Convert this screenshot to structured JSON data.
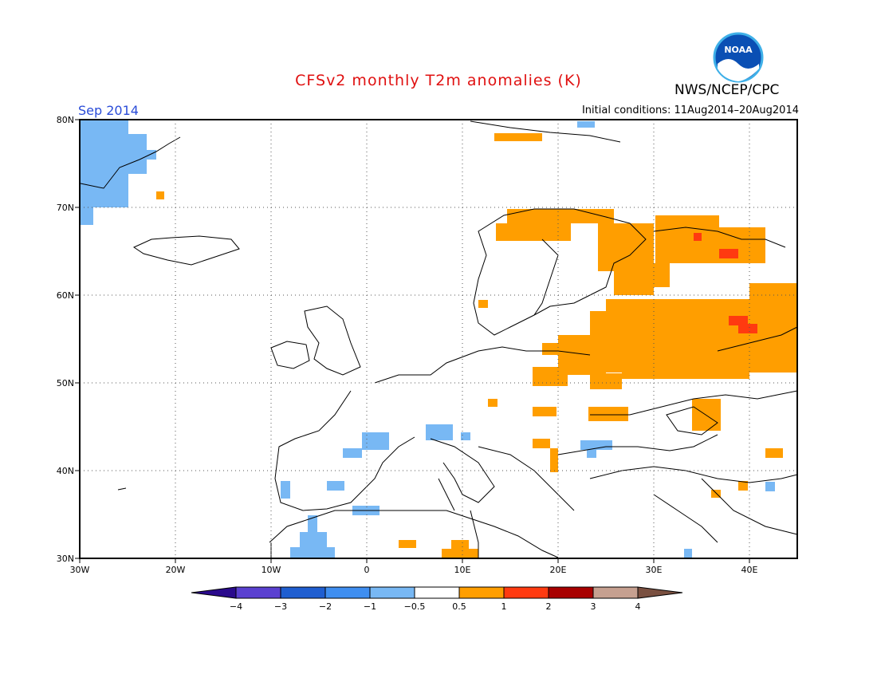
{
  "title": "CFSv2 monthly T2m anomalies (K)",
  "agency": "NWS/NCEP/CPC",
  "logo_text": "NOAA",
  "valid_month": "Sep 2014",
  "initial_conditions": "Initial conditions: 11Aug2014–20Aug2014",
  "map": {
    "lon_range": [
      -30,
      45
    ],
    "lat_range": [
      30,
      80
    ],
    "lat_labels": [
      "80N",
      "70N",
      "60N",
      "50N",
      "40N",
      "30N"
    ],
    "lon_labels": [
      "30W",
      "20W",
      "10W",
      "0",
      "10E",
      "20E",
      "30E",
      "40E"
    ]
  },
  "colorbar": {
    "labels": [
      "−4",
      "−3",
      "−2",
      "−1",
      "−0.5",
      "0.5",
      "1",
      "2",
      "3",
      "4"
    ],
    "colors": [
      "#2a0a8c",
      "#5a40d0",
      "#1f5ed0",
      "#3f8ef0",
      "#78b8f4",
      "#ffffff",
      "#ff9e00",
      "#ff3a10",
      "#a80000",
      "#c6a090",
      "#7a5040"
    ]
  }
}
